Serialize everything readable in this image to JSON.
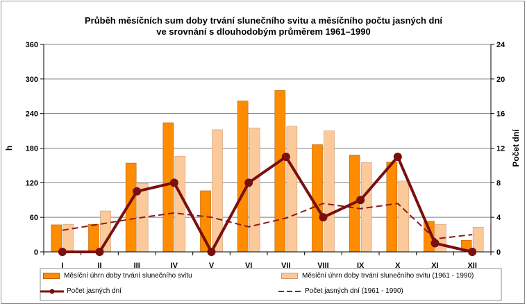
{
  "chart_data": {
    "type": "bar",
    "title_line1": "Průběh měsíčních sum doby trvání slunečního svitu a měsíčního počtu jasných dní",
    "title_line2": "ve srovnání s dlouhodobým průměrem 1961–1990",
    "categories": [
      "I",
      "II",
      "III",
      "IV",
      "V",
      "VI",
      "VII",
      "VIII",
      "IX",
      "X",
      "XI",
      "XII"
    ],
    "ylabel": "h",
    "y2label": "Počet dní",
    "ylim": [
      0,
      360
    ],
    "y2lim": [
      0,
      24
    ],
    "yticks": [
      "0",
      "60",
      "120",
      "180",
      "240",
      "300",
      "360"
    ],
    "y2ticks": [
      "0",
      "4",
      "8",
      "12",
      "16",
      "20",
      "24"
    ],
    "grid": true,
    "legend_position": "bottom",
    "series": [
      {
        "name": "Měsíční úhrn doby trvání slunečního svitu",
        "kind": "bar",
        "axis": "left",
        "color": "#ff8c00",
        "values": [
          47,
          48,
          154,
          224,
          106,
          262,
          280,
          186,
          168,
          156,
          53,
          20
        ]
      },
      {
        "name": "Měsíční úhrn doby trvání slunečního svitu (1961 - 1990)",
        "kind": "bar",
        "axis": "left",
        "color": "#fcc99a",
        "values": [
          48,
          71,
          119,
          166,
          212,
          215,
          218,
          210,
          155,
          123,
          48,
          43
        ]
      },
      {
        "name": "Počet jasných dní",
        "kind": "line",
        "axis": "right",
        "color": "#7a0f0f",
        "values": [
          0,
          0,
          7,
          8,
          0,
          8,
          11,
          4,
          6,
          11,
          1,
          0
        ]
      },
      {
        "name": "Počet jasných dní (1961 - 1990)",
        "kind": "dashed-line",
        "axis": "right",
        "color": "#8b1a1a",
        "values": [
          2.5,
          3.2,
          3.9,
          4.5,
          4.0,
          2.9,
          3.9,
          5.6,
          5.0,
          5.6,
          1.5,
          2.0
        ]
      }
    ]
  }
}
